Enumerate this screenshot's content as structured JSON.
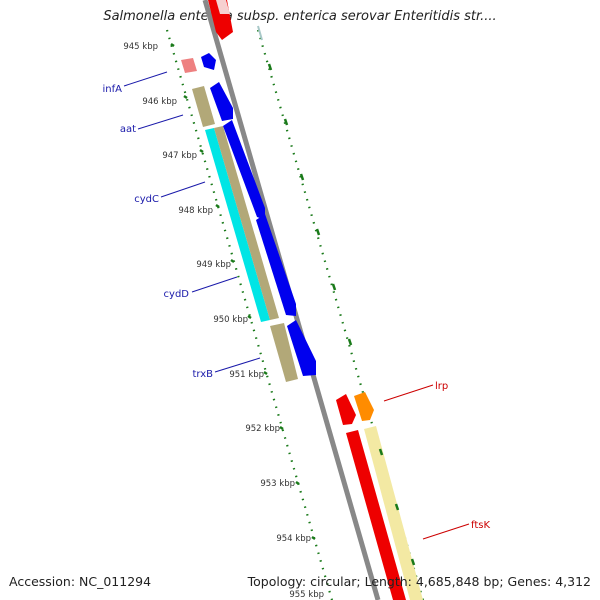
{
  "map": {
    "title": "Salmonella enterica subsp. enterica serovar Enteritidis str....",
    "accession": "Accession: NC_011294",
    "summary": "Topology: circular; Length: 4,685,848 bp; Genes: 4,312"
  },
  "ticks": [
    "945 kbp",
    "946 kbp",
    "947 kbp",
    "948 kbp",
    "949 kbp",
    "950 kbp",
    "951 kbp",
    "952 kbp",
    "953 kbp",
    "954 kbp",
    "955 kbp"
  ],
  "genes_left": [
    "infA",
    "aat",
    "cydC",
    "cydD",
    "trxB"
  ],
  "genes_right": [
    "lrp",
    "ftsK"
  ],
  "colors": {
    "left_label": "#1a1aaa",
    "right_label": "#cc0000",
    "blue_cds": "#0000ee",
    "olive": "#b2a878",
    "cyan": "#00e5e5",
    "red": "#ee0000",
    "pink": "#ee8080",
    "orange": "#ff8c00",
    "pale_yellow": "#f3e9a3",
    "tick_green": "#1a7a1a",
    "backbone": "#888888"
  }
}
